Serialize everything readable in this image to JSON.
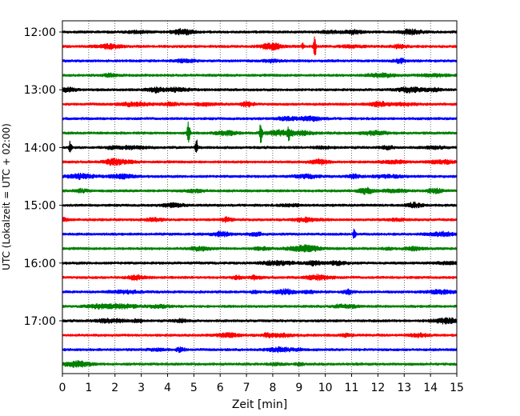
{
  "chart_data": {
    "type": "line",
    "title": "",
    "xlabel": "Zeit  [min]",
    "ylabel": "UTC (Lokalzeit = UTC + 02:00)",
    "xlim": [
      0,
      15
    ],
    "x_ticks": [
      "0",
      "1",
      "2",
      "3",
      "4",
      "5",
      "6",
      "7",
      "8",
      "9",
      "10",
      "11",
      "12",
      "13",
      "14",
      "15"
    ],
    "y_ticks": [
      "12:00",
      "13:00",
      "14:00",
      "15:00",
      "16:00",
      "17:00"
    ],
    "grid": "vertical dotted at each minute",
    "row_interval_minutes": 15,
    "row_colors": [
      "#000000",
      "#ff0000",
      "#0000ff",
      "#008000"
    ],
    "rows": [
      {
        "label": "12:00",
        "color": "#000000"
      },
      {
        "label": "12:15",
        "color": "#ff0000",
        "events": [
          {
            "x": 9.6,
            "amp": 14
          },
          {
            "x": 9.15,
            "amp": 4
          }
        ]
      },
      {
        "label": "12:30",
        "color": "#0000ff"
      },
      {
        "label": "12:45",
        "color": "#008000"
      },
      {
        "label": "13:00",
        "color": "#000000"
      },
      {
        "label": "13:15",
        "color": "#ff0000"
      },
      {
        "label": "13:30",
        "color": "#0000ff"
      },
      {
        "label": "13:45",
        "color": "#008000",
        "events": [
          {
            "x": 4.8,
            "amp": 16
          },
          {
            "x": 7.55,
            "amp": 14
          },
          {
            "x": 8.6,
            "amp": 8
          }
        ]
      },
      {
        "label": "14:00",
        "color": "#000000",
        "events": [
          {
            "x": 0.3,
            "amp": 9
          },
          {
            "x": 5.1,
            "amp": 9
          }
        ]
      },
      {
        "label": "14:15",
        "color": "#ff0000"
      },
      {
        "label": "14:30",
        "color": "#0000ff"
      },
      {
        "label": "14:45",
        "color": "#008000"
      },
      {
        "label": "15:00",
        "color": "#000000"
      },
      {
        "label": "15:15",
        "color": "#ff0000"
      },
      {
        "label": "15:30",
        "color": "#0000ff",
        "events": [
          {
            "x": 11.1,
            "amp": 6
          }
        ]
      },
      {
        "label": "15:45",
        "color": "#008000"
      },
      {
        "label": "16:00",
        "color": "#000000"
      },
      {
        "label": "16:15",
        "color": "#ff0000"
      },
      {
        "label": "16:30",
        "color": "#0000ff"
      },
      {
        "label": "16:45",
        "color": "#008000"
      },
      {
        "label": "17:00",
        "color": "#000000"
      },
      {
        "label": "17:15",
        "color": "#ff0000"
      },
      {
        "label": "17:30",
        "color": "#0000ff"
      },
      {
        "label": "17:45",
        "color": "#008000"
      }
    ]
  }
}
